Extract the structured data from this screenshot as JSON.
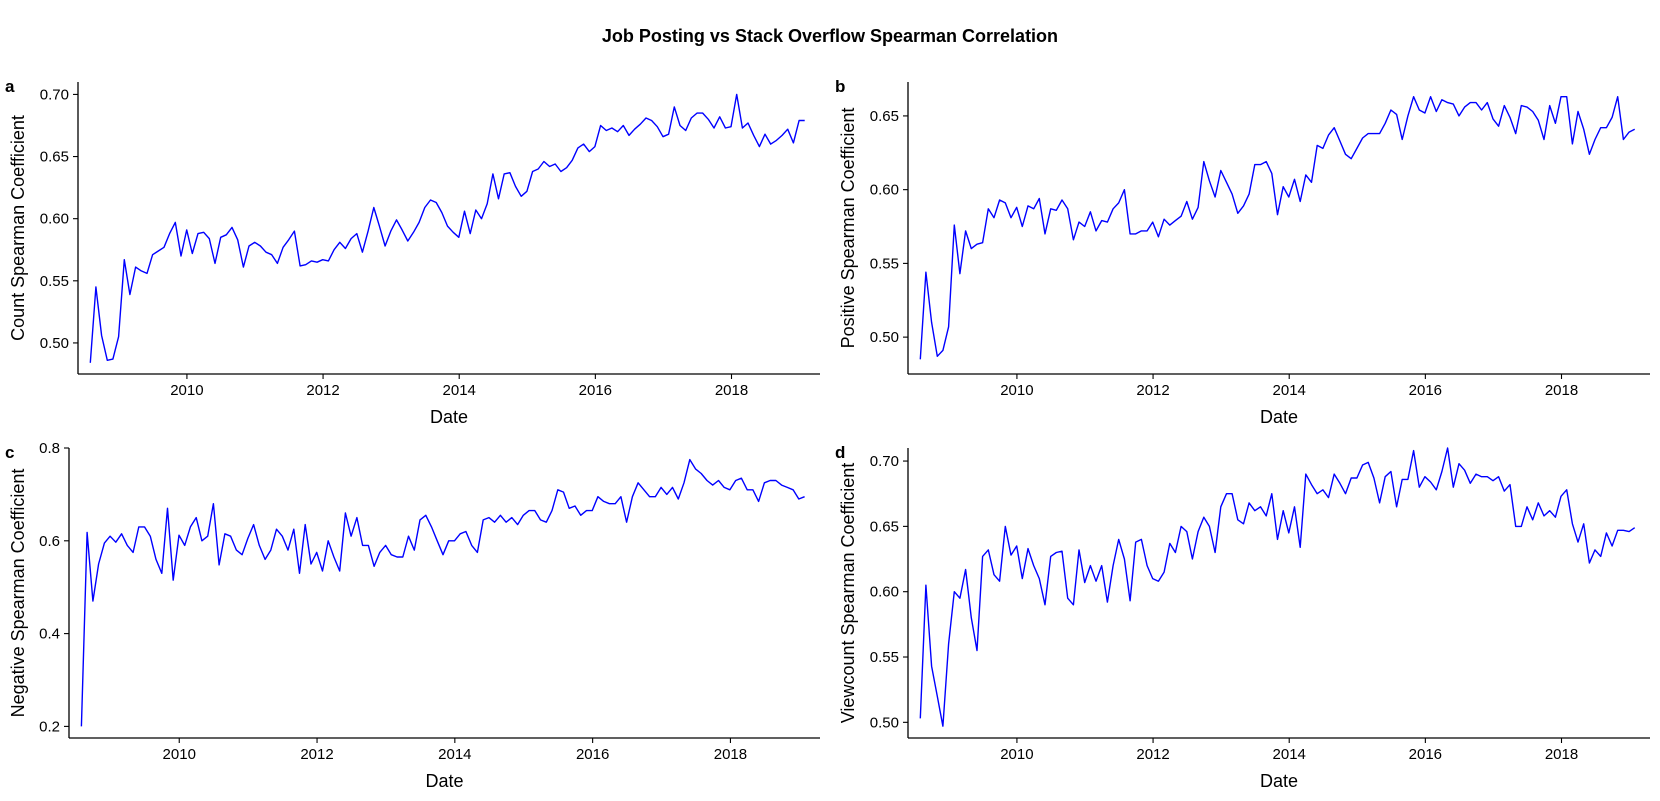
{
  "title": "Job Posting vs Stack Overflow Spearman Correlation",
  "colors": {
    "series": "#0000ff",
    "axis": "#000000",
    "background": "#ffffff"
  },
  "chart_data": [
    {
      "panel": "a",
      "type": "line",
      "xlabel": "Date",
      "ylabel": "Count Spearman Coefficient",
      "x_ticks": [
        2010,
        2012,
        2014,
        2016,
        2018
      ],
      "y_ticks": [
        0.5,
        0.55,
        0.6,
        0.65,
        0.7
      ],
      "y_tick_labels": [
        "0.50",
        "0.55",
        "0.60",
        "0.65",
        "0.70"
      ],
      "xlim": [
        2008.4,
        2019.3
      ],
      "ylim": [
        0.475,
        0.71
      ],
      "x_start": 2008.58,
      "x_step": 0.0833,
      "values": [
        0.484,
        0.545,
        0.506,
        0.486,
        0.487,
        0.505,
        0.567,
        0.539,
        0.561,
        0.558,
        0.556,
        0.571,
        0.574,
        0.577,
        0.588,
        0.597,
        0.57,
        0.591,
        0.572,
        0.588,
        0.589,
        0.584,
        0.564,
        0.585,
        0.587,
        0.593,
        0.583,
        0.561,
        0.578,
        0.581,
        0.578,
        0.573,
        0.571,
        0.564,
        0.577,
        0.583,
        0.59,
        0.562,
        0.563,
        0.566,
        0.565,
        0.567,
        0.566,
        0.575,
        0.581,
        0.576,
        0.584,
        0.588,
        0.573,
        0.59,
        0.609,
        0.594,
        0.578,
        0.59,
        0.599,
        0.591,
        0.582,
        0.589,
        0.597,
        0.609,
        0.615,
        0.613,
        0.605,
        0.594,
        0.589,
        0.585,
        0.606,
        0.588,
        0.607,
        0.6,
        0.612,
        0.636,
        0.616,
        0.636,
        0.637,
        0.626,
        0.618,
        0.622,
        0.638,
        0.64,
        0.646,
        0.642,
        0.644,
        0.638,
        0.641,
        0.647,
        0.657,
        0.66,
        0.654,
        0.658,
        0.675,
        0.671,
        0.673,
        0.67,
        0.675,
        0.667,
        0.672,
        0.676,
        0.681,
        0.679,
        0.674,
        0.666,
        0.668,
        0.69,
        0.675,
        0.671,
        0.681,
        0.685,
        0.685,
        0.68,
        0.673,
        0.682,
        0.673,
        0.674,
        0.7,
        0.673,
        0.677,
        0.667,
        0.658,
        0.668,
        0.66,
        0.663,
        0.667,
        0.672,
        0.661,
        0.679,
        0.679
      ]
    },
    {
      "panel": "b",
      "type": "line",
      "xlabel": "Date",
      "ylabel": "Positive Spearman Coefficient",
      "x_ticks": [
        2010,
        2012,
        2014,
        2016,
        2018
      ],
      "y_ticks": [
        0.5,
        0.55,
        0.6,
        0.65
      ],
      "y_tick_labels": [
        "0.50",
        "0.55",
        "0.60",
        "0.65"
      ],
      "xlim": [
        2008.4,
        2019.3
      ],
      "ylim": [
        0.475,
        0.673
      ],
      "x_start": 2008.58,
      "x_step": 0.0833,
      "values": [
        0.485,
        0.544,
        0.51,
        0.487,
        0.491,
        0.507,
        0.576,
        0.543,
        0.572,
        0.56,
        0.563,
        0.564,
        0.587,
        0.581,
        0.593,
        0.591,
        0.581,
        0.588,
        0.575,
        0.589,
        0.587,
        0.594,
        0.57,
        0.587,
        0.586,
        0.593,
        0.587,
        0.566,
        0.578,
        0.575,
        0.585,
        0.572,
        0.579,
        0.578,
        0.587,
        0.591,
        0.6,
        0.57,
        0.57,
        0.572,
        0.572,
        0.578,
        0.568,
        0.58,
        0.576,
        0.579,
        0.582,
        0.592,
        0.58,
        0.588,
        0.619,
        0.606,
        0.595,
        0.613,
        0.605,
        0.597,
        0.584,
        0.589,
        0.597,
        0.617,
        0.617,
        0.619,
        0.611,
        0.583,
        0.602,
        0.595,
        0.607,
        0.592,
        0.61,
        0.605,
        0.63,
        0.628,
        0.637,
        0.642,
        0.633,
        0.624,
        0.621,
        0.628,
        0.635,
        0.638,
        0.638,
        0.638,
        0.645,
        0.654,
        0.651,
        0.634,
        0.65,
        0.663,
        0.654,
        0.652,
        0.663,
        0.653,
        0.661,
        0.659,
        0.658,
        0.65,
        0.656,
        0.659,
        0.659,
        0.654,
        0.659,
        0.648,
        0.643,
        0.657,
        0.649,
        0.638,
        0.657,
        0.656,
        0.653,
        0.647,
        0.634,
        0.657,
        0.645,
        0.663,
        0.663,
        0.631,
        0.653,
        0.641,
        0.624,
        0.634,
        0.642,
        0.642,
        0.649,
        0.663,
        0.634,
        0.639,
        0.641
      ]
    },
    {
      "panel": "c",
      "type": "line",
      "xlabel": "Date",
      "ylabel": "Negative Spearman Coefficient",
      "x_ticks": [
        2010,
        2012,
        2014,
        2016,
        2018
      ],
      "y_ticks": [
        0.2,
        0.4,
        0.6,
        0.8
      ],
      "y_tick_labels": [
        "0.2",
        "0.4",
        "0.6",
        "0.8"
      ],
      "xlim": [
        2008.4,
        2019.3
      ],
      "ylim": [
        0.175,
        0.8
      ],
      "x_start": 2008.58,
      "x_step": 0.0833,
      "values": [
        0.2,
        0.618,
        0.47,
        0.55,
        0.595,
        0.61,
        0.597,
        0.615,
        0.59,
        0.575,
        0.63,
        0.63,
        0.61,
        0.56,
        0.53,
        0.67,
        0.515,
        0.612,
        0.59,
        0.63,
        0.65,
        0.6,
        0.61,
        0.68,
        0.548,
        0.615,
        0.61,
        0.58,
        0.57,
        0.605,
        0.635,
        0.59,
        0.56,
        0.58,
        0.625,
        0.61,
        0.58,
        0.625,
        0.53,
        0.635,
        0.55,
        0.575,
        0.535,
        0.6,
        0.565,
        0.535,
        0.66,
        0.61,
        0.65,
        0.59,
        0.59,
        0.545,
        0.575,
        0.59,
        0.57,
        0.565,
        0.565,
        0.61,
        0.58,
        0.645,
        0.655,
        0.63,
        0.6,
        0.57,
        0.6,
        0.6,
        0.615,
        0.62,
        0.59,
        0.575,
        0.645,
        0.65,
        0.64,
        0.655,
        0.64,
        0.65,
        0.635,
        0.655,
        0.665,
        0.665,
        0.645,
        0.64,
        0.665,
        0.71,
        0.705,
        0.67,
        0.675,
        0.655,
        0.665,
        0.665,
        0.695,
        0.685,
        0.68,
        0.68,
        0.695,
        0.64,
        0.695,
        0.725,
        0.71,
        0.695,
        0.695,
        0.715,
        0.7,
        0.715,
        0.69,
        0.725,
        0.775,
        0.755,
        0.745,
        0.73,
        0.72,
        0.73,
        0.715,
        0.71,
        0.73,
        0.735,
        0.71,
        0.71,
        0.685,
        0.725,
        0.73,
        0.73,
        0.72,
        0.715,
        0.71,
        0.69,
        0.695
      ]
    },
    {
      "panel": "d",
      "type": "line",
      "xlabel": "Date",
      "ylabel": "Viewcount Spearman Coefficient",
      "x_ticks": [
        2010,
        2012,
        2014,
        2016,
        2018
      ],
      "y_ticks": [
        0.5,
        0.55,
        0.6,
        0.65,
        0.7
      ],
      "y_tick_labels": [
        "0.50",
        "0.55",
        "0.60",
        "0.65",
        "0.70"
      ],
      "xlim": [
        2008.4,
        2019.3
      ],
      "ylim": [
        0.488,
        0.71
      ],
      "x_start": 2008.58,
      "x_step": 0.0833,
      "values": [
        0.503,
        0.605,
        0.543,
        0.52,
        0.497,
        0.56,
        0.6,
        0.595,
        0.617,
        0.58,
        0.555,
        0.627,
        0.632,
        0.613,
        0.608,
        0.65,
        0.628,
        0.635,
        0.61,
        0.633,
        0.62,
        0.61,
        0.59,
        0.627,
        0.63,
        0.631,
        0.595,
        0.59,
        0.632,
        0.607,
        0.62,
        0.608,
        0.62,
        0.592,
        0.62,
        0.64,
        0.625,
        0.593,
        0.638,
        0.64,
        0.62,
        0.61,
        0.608,
        0.615,
        0.637,
        0.63,
        0.65,
        0.646,
        0.625,
        0.646,
        0.657,
        0.65,
        0.63,
        0.665,
        0.675,
        0.675,
        0.655,
        0.652,
        0.668,
        0.662,
        0.665,
        0.658,
        0.675,
        0.64,
        0.662,
        0.645,
        0.665,
        0.634,
        0.69,
        0.682,
        0.675,
        0.678,
        0.672,
        0.69,
        0.683,
        0.675,
        0.687,
        0.687,
        0.697,
        0.699,
        0.687,
        0.668,
        0.688,
        0.692,
        0.665,
        0.686,
        0.686,
        0.708,
        0.68,
        0.688,
        0.684,
        0.678,
        0.692,
        0.71,
        0.68,
        0.698,
        0.693,
        0.683,
        0.69,
        0.688,
        0.688,
        0.685,
        0.688,
        0.677,
        0.682,
        0.65,
        0.65,
        0.665,
        0.655,
        0.668,
        0.658,
        0.662,
        0.657,
        0.673,
        0.678,
        0.652,
        0.638,
        0.652,
        0.622,
        0.632,
        0.627,
        0.645,
        0.635,
        0.647,
        0.647,
        0.646,
        0.649
      ]
    }
  ]
}
